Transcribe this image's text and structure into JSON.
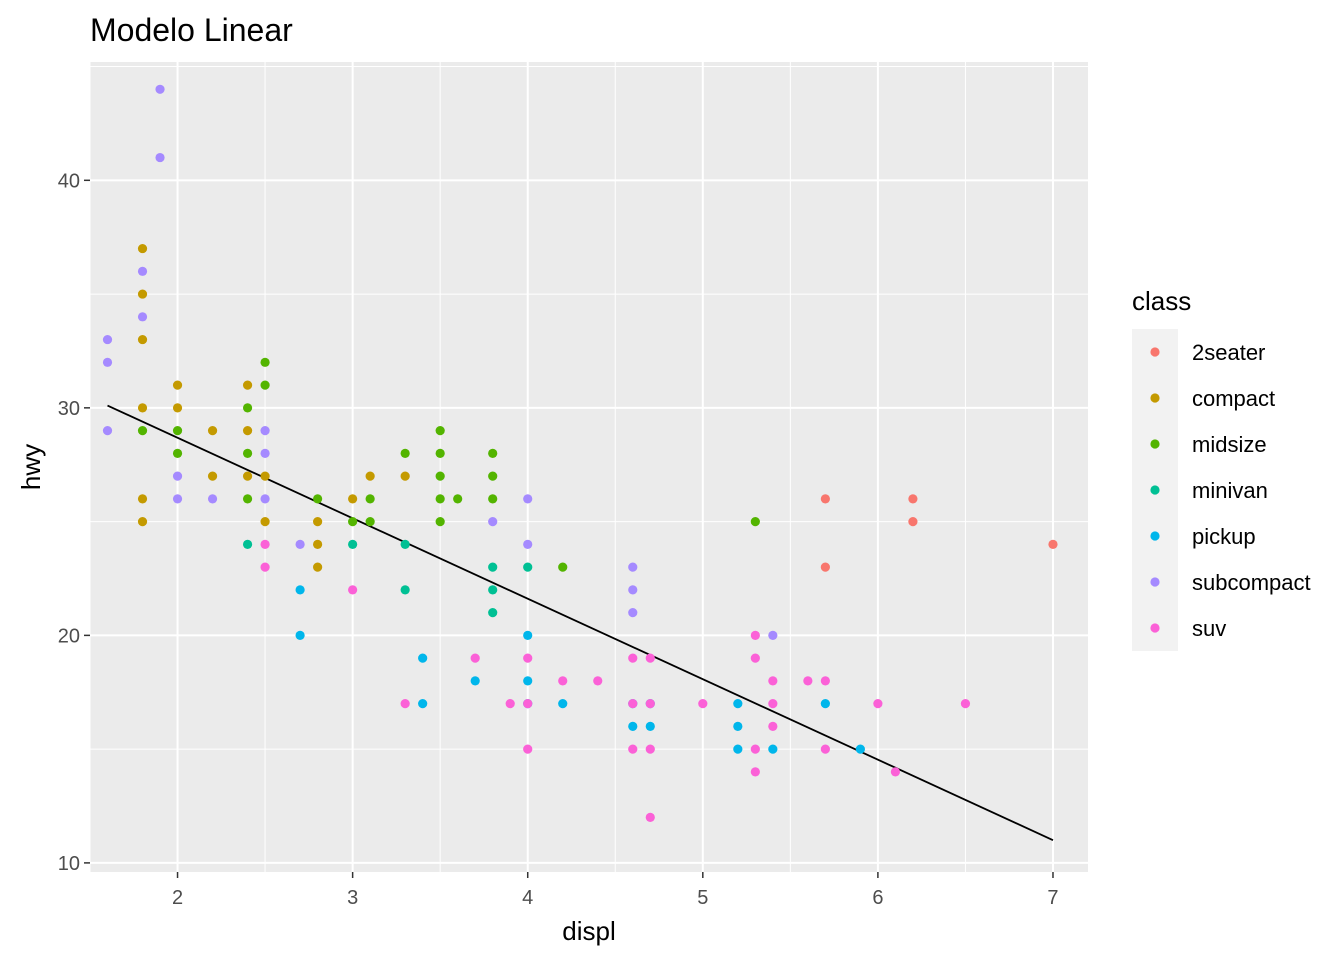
{
  "chart_data": {
    "type": "scatter",
    "title": "Modelo Linear",
    "xlabel": "displ",
    "ylabel": "hwy",
    "xlim": [
      1.5,
      7.2
    ],
    "ylim": [
      9.6,
      45.2
    ],
    "x_ticks": [
      2,
      3,
      4,
      5,
      6,
      7
    ],
    "y_ticks": [
      10,
      20,
      30,
      40
    ],
    "grid": true,
    "background": "#EBEBEB",
    "legend": {
      "title": "class",
      "placement": "right",
      "entries": [
        {
          "name": "2seater",
          "color": "#F8766D"
        },
        {
          "name": "compact",
          "color": "#C49A00"
        },
        {
          "name": "midsize",
          "color": "#53B400"
        },
        {
          "name": "minivan",
          "color": "#00C094"
        },
        {
          "name": "pickup",
          "color": "#00B6EB"
        },
        {
          "name": "subcompact",
          "color": "#A58AFF"
        },
        {
          "name": "suv",
          "color": "#FB61D7"
        }
      ]
    },
    "series": [
      {
        "name": "2seater",
        "points": [
          [
            5.7,
            26
          ],
          [
            5.7,
            23
          ],
          [
            6.2,
            26
          ],
          [
            6.2,
            25
          ],
          [
            7.0,
            24
          ]
        ]
      },
      {
        "name": "compact",
        "points": [
          [
            1.8,
            37
          ],
          [
            1.8,
            35
          ],
          [
            1.8,
            33
          ],
          [
            1.8,
            30
          ],
          [
            1.8,
            26
          ],
          [
            1.8,
            25
          ],
          [
            2.0,
            31
          ],
          [
            2.0,
            30
          ],
          [
            2.2,
            29
          ],
          [
            2.2,
            27
          ],
          [
            2.4,
            31
          ],
          [
            2.4,
            29
          ],
          [
            2.4,
            27
          ],
          [
            2.5,
            27
          ],
          [
            2.5,
            25
          ],
          [
            2.8,
            25
          ],
          [
            2.8,
            24
          ],
          [
            2.8,
            23
          ],
          [
            3.0,
            26
          ],
          [
            3.1,
            27
          ],
          [
            3.3,
            27
          ]
        ]
      },
      {
        "name": "midsize",
        "points": [
          [
            1.8,
            29
          ],
          [
            2.0,
            29
          ],
          [
            2.0,
            28
          ],
          [
            2.4,
            30
          ],
          [
            2.4,
            28
          ],
          [
            2.4,
            26
          ],
          [
            2.5,
            32
          ],
          [
            2.5,
            31
          ],
          [
            2.8,
            26
          ],
          [
            3.0,
            25
          ],
          [
            3.1,
            26
          ],
          [
            3.1,
            25
          ],
          [
            3.3,
            28
          ],
          [
            3.5,
            29
          ],
          [
            3.5,
            28
          ],
          [
            3.5,
            27
          ],
          [
            3.5,
            26
          ],
          [
            3.5,
            25
          ],
          [
            3.6,
            26
          ],
          [
            3.8,
            28
          ],
          [
            3.8,
            27
          ],
          [
            3.8,
            26
          ],
          [
            4.2,
            23
          ],
          [
            5.3,
            25
          ]
        ]
      },
      {
        "name": "minivan",
        "points": [
          [
            2.4,
            24
          ],
          [
            3.0,
            24
          ],
          [
            3.3,
            24
          ],
          [
            3.3,
            22
          ],
          [
            3.8,
            23
          ],
          [
            3.8,
            22
          ],
          [
            3.8,
            21
          ],
          [
            4.0,
            23
          ]
        ]
      },
      {
        "name": "pickup",
        "points": [
          [
            2.7,
            22
          ],
          [
            2.7,
            20
          ],
          [
            3.4,
            19
          ],
          [
            3.4,
            17
          ],
          [
            3.7,
            18
          ],
          [
            4.0,
            20
          ],
          [
            4.0,
            18
          ],
          [
            4.0,
            17
          ],
          [
            4.2,
            17
          ],
          [
            4.6,
            17
          ],
          [
            4.6,
            16
          ],
          [
            4.7,
            17
          ],
          [
            4.7,
            16
          ],
          [
            5.2,
            17
          ],
          [
            5.2,
            16
          ],
          [
            5.2,
            15
          ],
          [
            5.4,
            15
          ],
          [
            5.7,
            17
          ],
          [
            5.9,
            15
          ]
        ]
      },
      {
        "name": "subcompact",
        "points": [
          [
            1.6,
            33
          ],
          [
            1.6,
            32
          ],
          [
            1.6,
            29
          ],
          [
            1.8,
            36
          ],
          [
            1.8,
            34
          ],
          [
            1.9,
            44
          ],
          [
            1.9,
            41
          ],
          [
            2.0,
            27
          ],
          [
            2.0,
            26
          ],
          [
            2.2,
            26
          ],
          [
            2.5,
            29
          ],
          [
            2.5,
            28
          ],
          [
            2.5,
            26
          ],
          [
            2.7,
            24
          ],
          [
            3.8,
            25
          ],
          [
            4.0,
            26
          ],
          [
            4.0,
            24
          ],
          [
            4.6,
            23
          ],
          [
            4.6,
            22
          ],
          [
            4.6,
            21
          ],
          [
            5.4,
            20
          ]
        ]
      },
      {
        "name": "suv",
        "points": [
          [
            2.5,
            24
          ],
          [
            2.5,
            23
          ],
          [
            3.0,
            22
          ],
          [
            3.3,
            17
          ],
          [
            3.7,
            19
          ],
          [
            3.9,
            17
          ],
          [
            4.0,
            19
          ],
          [
            4.0,
            17
          ],
          [
            4.0,
            15
          ],
          [
            4.2,
            18
          ],
          [
            4.4,
            18
          ],
          [
            4.6,
            19
          ],
          [
            4.6,
            17
          ],
          [
            4.6,
            15
          ],
          [
            4.7,
            19
          ],
          [
            4.7,
            17
          ],
          [
            4.7,
            15
          ],
          [
            4.7,
            12
          ],
          [
            5.0,
            17
          ],
          [
            5.3,
            20
          ],
          [
            5.3,
            19
          ],
          [
            5.3,
            15
          ],
          [
            5.3,
            14
          ],
          [
            5.4,
            18
          ],
          [
            5.4,
            17
          ],
          [
            5.4,
            16
          ],
          [
            5.6,
            18
          ],
          [
            5.7,
            18
          ],
          [
            5.7,
            15
          ],
          [
            6.0,
            17
          ],
          [
            6.1,
            14
          ],
          [
            6.5,
            17
          ]
        ]
      }
    ],
    "fit_line": {
      "x": [
        1.6,
        7.0
      ],
      "y": [
        30.1,
        11.0
      ],
      "color": "#000000"
    }
  }
}
